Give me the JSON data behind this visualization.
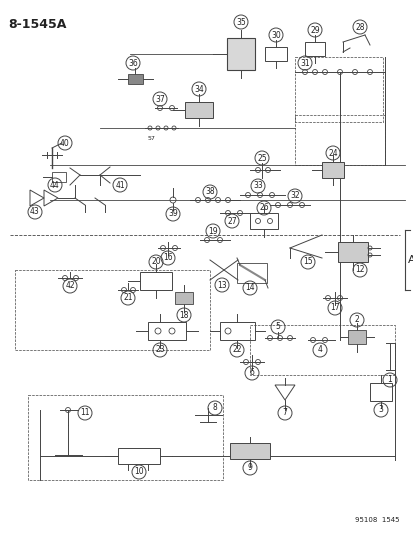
{
  "title": "8-1545A",
  "footer": "95108  1545",
  "label_A": "A",
  "bg_color": "#ffffff",
  "lc": "#444444",
  "tc": "#222222",
  "figsize": [
    4.14,
    5.33
  ],
  "dpi": 100
}
